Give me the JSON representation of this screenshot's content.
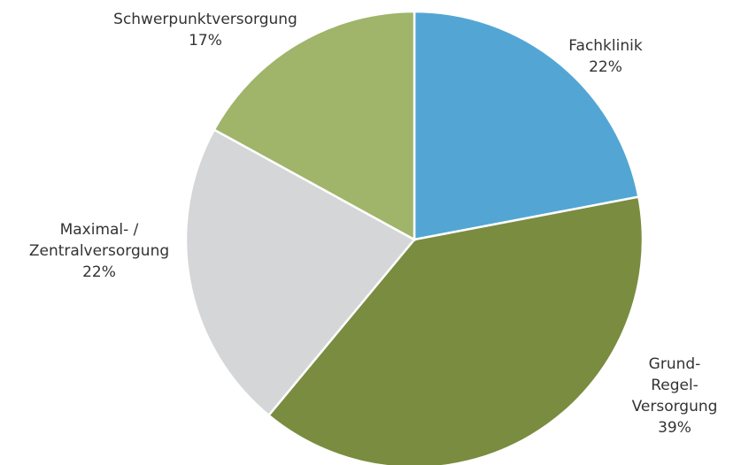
{
  "chart_data": {
    "type": "pie",
    "categories": [
      "Fachklinik",
      "Grund-Regel-\nVersorgung",
      "Maximal- /\nZentralversorgung",
      "Schwerpunktversorgung"
    ],
    "values": [
      22,
      39,
      22,
      17
    ],
    "value_labels": [
      "22%",
      "39%",
      "22%",
      "17%"
    ],
    "colors": [
      "#53a6d4",
      "#7a8c3f",
      "#d5d6d8",
      "#a0b46a"
    ]
  }
}
